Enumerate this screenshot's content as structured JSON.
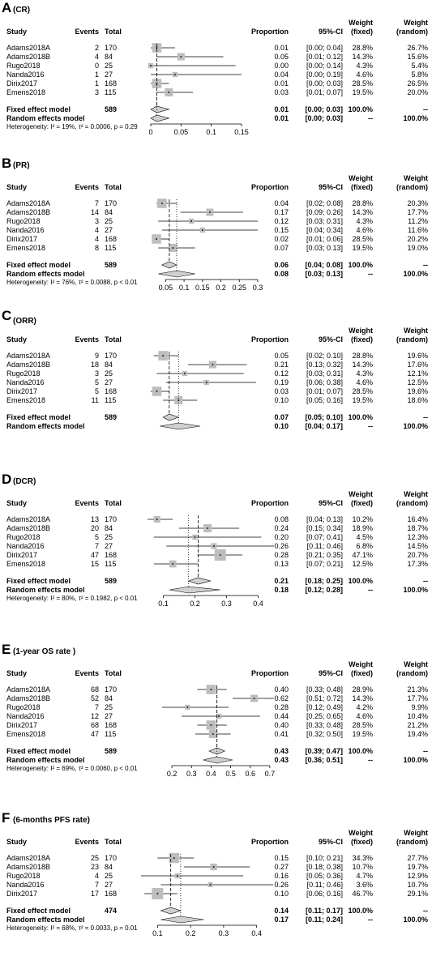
{
  "chart_data": [
    {
      "type": "forest",
      "panel_letter": "A",
      "panel_title": "(CR)",
      "headers": {
        "study": "Study",
        "events": "Events",
        "total": "Total",
        "proportion": "Proportion",
        "ci": "95%-CI",
        "wf": "Weight\n(fixed)",
        "wr": "Weight\n(random)"
      },
      "xaxis": {
        "min": 0,
        "max": 0.15,
        "ticks": [
          0,
          0.05,
          0.1,
          0.15
        ],
        "tick_labels": [
          "0",
          "0.05",
          "0.1",
          "0.15"
        ]
      },
      "studies": [
        {
          "name": "Adams2018A",
          "events": "2",
          "total": "170",
          "p": 0.01,
          "lo": 0.0,
          "hi": 0.04,
          "prop": "0.01",
          "ci": "[0.00; 0.04]",
          "wf": "28.8%",
          "wr": "26.7%",
          "w": 28.8
        },
        {
          "name": "Adams2018B",
          "events": "4",
          "total": "84",
          "p": 0.05,
          "lo": 0.01,
          "hi": 0.12,
          "prop": "0.05",
          "ci": "[0.01; 0.12]",
          "wf": "14.3%",
          "wr": "15.6%",
          "w": 14.3
        },
        {
          "name": "Rugo2018",
          "events": "0",
          "total": "25",
          "p": 0.0,
          "lo": 0.0,
          "hi": 0.14,
          "prop": "0.00",
          "ci": "[0.00; 0.14]",
          "wf": "4.3%",
          "wr": "5.4%",
          "w": 4.3
        },
        {
          "name": "Nanda2016",
          "events": "1",
          "total": "27",
          "p": 0.04,
          "lo": 0.0,
          "hi": 0.19,
          "prop": "0.04",
          "ci": "[0.00; 0.19]",
          "wf": "4.6%",
          "wr": "5.8%",
          "w": 4.6
        },
        {
          "name": "Dirix2017",
          "events": "1",
          "total": "168",
          "p": 0.01,
          "lo": 0.0,
          "hi": 0.03,
          "prop": "0.01",
          "ci": "[0.00; 0.03]",
          "wf": "28.5%",
          "wr": "26.5%",
          "w": 28.5
        },
        {
          "name": "Emens2018",
          "events": "3",
          "total": "115",
          "p": 0.03,
          "lo": 0.01,
          "hi": 0.07,
          "prop": "0.03",
          "ci": "[0.01; 0.07]",
          "wf": "19.5%",
          "wr": "20.0%",
          "w": 19.5
        }
      ],
      "fixed": {
        "label": "Fixed effect model",
        "total": "589",
        "p": 0.01,
        "lo": 0.0,
        "hi": 0.03,
        "prop": "0.01",
        "ci": "[0.00; 0.03]",
        "wf": "100.0%",
        "wr": "--"
      },
      "random": {
        "label": "Random effects model",
        "p": 0.01,
        "lo": 0.0,
        "hi": 0.03,
        "prop": "0.01",
        "ci": "[0.00; 0.03]",
        "wf": "--",
        "wr": "100.0%"
      },
      "heterogeneity": "Heterogeneity: I² = 19%, τ² = 0.0006, p = 0.29"
    },
    {
      "type": "forest",
      "panel_letter": "B",
      "panel_title": "(PR)",
      "headers": {
        "study": "Study",
        "events": "Events",
        "total": "Total",
        "proportion": "Proportion",
        "ci": "95%-CI",
        "wf": "Weight\n(fixed)",
        "wr": "Weight\n(random)"
      },
      "xaxis": {
        "min": 0.025,
        "max": 0.3,
        "ticks": [
          0.05,
          0.1,
          0.15,
          0.2,
          0.25,
          0.3
        ],
        "tick_labels": [
          "0.05",
          "0.1",
          "0.15",
          "0.2",
          "0.25",
          "0.3"
        ]
      },
      "studies": [
        {
          "name": "Adams2018A",
          "events": "7",
          "total": "170",
          "p": 0.04,
          "lo": 0.02,
          "hi": 0.08,
          "prop": "0.04",
          "ci": "[0.02; 0.08]",
          "wf": "28.8%",
          "wr": "20.3%",
          "w": 28.8
        },
        {
          "name": "Adams2018B",
          "events": "14",
          "total": "84",
          "p": 0.17,
          "lo": 0.09,
          "hi": 0.26,
          "prop": "0.17",
          "ci": "[0.09; 0.26]",
          "wf": "14.3%",
          "wr": "17.7%",
          "w": 14.3
        },
        {
          "name": "Rugo2018",
          "events": "3",
          "total": "25",
          "p": 0.12,
          "lo": 0.03,
          "hi": 0.31,
          "prop": "0.12",
          "ci": "[0.03; 0.31]",
          "wf": "4.3%",
          "wr": "11.2%",
          "w": 4.3
        },
        {
          "name": "Nanda2016",
          "events": "4",
          "total": "27",
          "p": 0.15,
          "lo": 0.04,
          "hi": 0.34,
          "prop": "0.15",
          "ci": "[0.04; 0.34]",
          "wf": "4.6%",
          "wr": "11.6%",
          "w": 4.6
        },
        {
          "name": "Dirix2017",
          "events": "4",
          "total": "168",
          "p": 0.02,
          "lo": 0.01,
          "hi": 0.06,
          "prop": "0.02",
          "ci": "[0.01; 0.06]",
          "wf": "28.5%",
          "wr": "20.2%",
          "w": 28.5
        },
        {
          "name": "Emens2018",
          "events": "8",
          "total": "115",
          "p": 0.07,
          "lo": 0.03,
          "hi": 0.13,
          "prop": "0.07",
          "ci": "[0.03; 0.13]",
          "wf": "19.5%",
          "wr": "19.0%",
          "w": 19.5
        }
      ],
      "fixed": {
        "label": "Fixed effect model",
        "total": "589",
        "p": 0.06,
        "lo": 0.04,
        "hi": 0.08,
        "prop": "0.06",
        "ci": "[0.04; 0.08]",
        "wf": "100.0%",
        "wr": "--"
      },
      "random": {
        "label": "Random effects model",
        "p": 0.08,
        "lo": 0.03,
        "hi": 0.13,
        "prop": "0.08",
        "ci": "[0.03; 0.13]",
        "wf": "--",
        "wr": "100.0%"
      },
      "heterogeneity": "Heterogeneity: I² = 76%, τ² = 0.0088, p < 0.01"
    },
    {
      "type": "forest",
      "panel_letter": "C",
      "panel_title": "(ORR)",
      "headers": {
        "study": "Study",
        "events": "Events",
        "total": "Total",
        "proportion": "Proportion",
        "ci": "95%-CI",
        "wf": "Weight\n(fixed)",
        "wr": "Weight\n(random)"
      },
      "xaxis": {
        "min": 0,
        "max": 0.35,
        "ticks": [],
        "tick_labels": []
      },
      "studies": [
        {
          "name": "Adams2018A",
          "events": "9",
          "total": "170",
          "p": 0.05,
          "lo": 0.02,
          "hi": 0.1,
          "prop": "0.05",
          "ci": "[0.02; 0.10]",
          "wf": "28.8%",
          "wr": "19.6%",
          "w": 28.8
        },
        {
          "name": "Adams2018B",
          "events": "18",
          "total": "84",
          "p": 0.21,
          "lo": 0.13,
          "hi": 0.32,
          "prop": "0.21",
          "ci": "[0.13; 0.32]",
          "wf": "14.3%",
          "wr": "17.6%",
          "w": 14.3
        },
        {
          "name": "Rugo2018",
          "events": "3",
          "total": "25",
          "p": 0.12,
          "lo": 0.03,
          "hi": 0.31,
          "prop": "0.12",
          "ci": "[0.03; 0.31]",
          "wf": "4.3%",
          "wr": "12.1%",
          "w": 4.3
        },
        {
          "name": "Nanda2016",
          "events": "5",
          "total": "27",
          "p": 0.19,
          "lo": 0.06,
          "hi": 0.38,
          "prop": "0.19",
          "ci": "[0.06; 0.38]",
          "wf": "4.6%",
          "wr": "12.5%",
          "w": 4.6
        },
        {
          "name": "Dirix2017",
          "events": "5",
          "total": "168",
          "p": 0.03,
          "lo": 0.01,
          "hi": 0.07,
          "prop": "0.03",
          "ci": "[0.01; 0.07]",
          "wf": "28.5%",
          "wr": "19.6%",
          "w": 28.5
        },
        {
          "name": "Emens2018",
          "events": "11",
          "total": "115",
          "p": 0.1,
          "lo": 0.05,
          "hi": 0.16,
          "prop": "0.10",
          "ci": "[0.05; 0.16]",
          "wf": "19.5%",
          "wr": "18.6%",
          "w": 19.5
        }
      ],
      "fixed": {
        "label": "Fixed effect model",
        "total": "589",
        "p": 0.07,
        "lo": 0.05,
        "hi": 0.1,
        "prop": "0.07",
        "ci": "[0.05; 0.10]",
        "wf": "100.0%",
        "wr": "--"
      },
      "random": {
        "label": "Random effects model",
        "p": 0.1,
        "lo": 0.04,
        "hi": 0.17,
        "prop": "0.10",
        "ci": "[0.04; 0.17]",
        "wf": "--",
        "wr": "100.0%"
      },
      "heterogeneity": ""
    },
    {
      "type": "forest",
      "panel_letter": "D",
      "panel_title": "(DCR)",
      "headers": {
        "study": "Study",
        "events": "Events",
        "total": "Total",
        "proportion": "Proportion",
        "ci": "95%-CI",
        "wf": "Weight\n(fixed)",
        "wr": "Weight\n(random)"
      },
      "xaxis": {
        "min": 0.05,
        "max": 0.45,
        "ticks": [
          0.1,
          0.2,
          0.3,
          0.4
        ],
        "tick_labels": [
          "0.1",
          "0.2",
          "0.3",
          "0.4"
        ]
      },
      "studies": [
        {
          "name": "Adams2018A",
          "events": "13",
          "total": "170",
          "p": 0.08,
          "lo": 0.04,
          "hi": 0.13,
          "prop": "0.08",
          "ci": "[0.04; 0.13]",
          "wf": "10.2%",
          "wr": "16.4%",
          "w": 10.2
        },
        {
          "name": "Adams2018B",
          "events": "20",
          "total": "84",
          "p": 0.24,
          "lo": 0.15,
          "hi": 0.34,
          "prop": "0.24",
          "ci": "[0.15; 0.34]",
          "wf": "18.9%",
          "wr": "18.7%",
          "w": 18.9
        },
        {
          "name": "Rugo2018",
          "events": "5",
          "total": "25",
          "p": 0.2,
          "lo": 0.07,
          "hi": 0.41,
          "prop": "0.20",
          "ci": "[0.07; 0.41]",
          "wf": "4.5%",
          "wr": "12.3%",
          "w": 4.5
        },
        {
          "name": "Nanda2016",
          "events": "7",
          "total": "27",
          "p": 0.26,
          "lo": 0.11,
          "hi": 0.46,
          "prop": "0.26",
          "ci": "[0.11; 0.46]",
          "wf": "6.8%",
          "wr": "14.5%",
          "w": 6.8
        },
        {
          "name": "Dirix2017",
          "events": "47",
          "total": "168",
          "p": 0.28,
          "lo": 0.21,
          "hi": 0.35,
          "prop": "0.28",
          "ci": "[0.21; 0.35]",
          "wf": "47.1%",
          "wr": "20.7%",
          "w": 47.1
        },
        {
          "name": "Emens2018",
          "events": "15",
          "total": "115",
          "p": 0.13,
          "lo": 0.07,
          "hi": 0.21,
          "prop": "0.13",
          "ci": "[0.07; 0.21]",
          "wf": "12.5%",
          "wr": "17.3%",
          "w": 12.5
        }
      ],
      "fixed": {
        "label": "Fixed effect model",
        "total": "589",
        "p": 0.21,
        "lo": 0.18,
        "hi": 0.25,
        "prop": "0.21",
        "ci": "[0.18; 0.25]",
        "wf": "100.0%",
        "wr": "--"
      },
      "random": {
        "label": "Random effects model",
        "p": 0.18,
        "lo": 0.12,
        "hi": 0.28,
        "prop": "0.18",
        "ci": "[0.12; 0.28]",
        "wf": "--",
        "wr": "100.0%"
      },
      "heterogeneity": "Heterogeneity: I² = 80%, τ² = 0.1982, p < 0.01"
    },
    {
      "type": "forest",
      "panel_letter": "E",
      "panel_title": "(1-year OS rate )",
      "headers": {
        "study": "Study",
        "events": "Events",
        "total": "Total",
        "proportion": "Proportion",
        "ci": "95%-CI",
        "wf": "Weight\n(fixed)",
        "wr": "Weight\n(random)"
      },
      "xaxis": {
        "min": 0.15,
        "max": 0.75,
        "ticks": [
          0.2,
          0.3,
          0.4,
          0.5,
          0.6,
          0.7
        ],
        "tick_labels": [
          "0.2",
          "0.3",
          "0.4",
          "0.5",
          "0.6",
          "0.7"
        ]
      },
      "studies": [
        {
          "name": "Adams2018A",
          "events": "68",
          "total": "170",
          "p": 0.4,
          "lo": 0.33,
          "hi": 0.48,
          "prop": "0.40",
          "ci": "[0.33; 0.48]",
          "wf": "28.9%",
          "wr": "21.3%",
          "w": 28.9
        },
        {
          "name": "Adams2018B",
          "events": "52",
          "total": "84",
          "p": 0.62,
          "lo": 0.51,
          "hi": 0.72,
          "prop": "0.62",
          "ci": "[0.51; 0.72]",
          "wf": "14.3%",
          "wr": "17.7%",
          "w": 14.3
        },
        {
          "name": "Rugo2018",
          "events": "7",
          "total": "25",
          "p": 0.28,
          "lo": 0.12,
          "hi": 0.49,
          "prop": "0.28",
          "ci": "[0.12; 0.49]",
          "wf": "4.2%",
          "wr": "9.9%",
          "w": 4.2
        },
        {
          "name": "Nanda2016",
          "events": "12",
          "total": "27",
          "p": 0.44,
          "lo": 0.25,
          "hi": 0.65,
          "prop": "0.44",
          "ci": "[0.25; 0.65]",
          "wf": "4.6%",
          "wr": "10.4%",
          "w": 4.6
        },
        {
          "name": "Dirix2017",
          "events": "68",
          "total": "168",
          "p": 0.4,
          "lo": 0.33,
          "hi": 0.48,
          "prop": "0.40",
          "ci": "[0.33; 0.48]",
          "wf": "28.5%",
          "wr": "21.2%",
          "w": 28.5
        },
        {
          "name": "Emens2018",
          "events": "47",
          "total": "115",
          "p": 0.41,
          "lo": 0.32,
          "hi": 0.5,
          "prop": "0.41",
          "ci": "[0.32; 0.50]",
          "wf": "19.5%",
          "wr": "19.4%",
          "w": 19.5
        }
      ],
      "fixed": {
        "label": "Fixed effect model",
        "total": "589",
        "p": 0.43,
        "lo": 0.39,
        "hi": 0.47,
        "prop": "0.43",
        "ci": "[0.39; 0.47]",
        "wf": "100.0%",
        "wr": "--"
      },
      "random": {
        "label": "Random effects model",
        "p": 0.43,
        "lo": 0.36,
        "hi": 0.51,
        "prop": "0.43",
        "ci": "[0.36; 0.51]",
        "wf": "--",
        "wr": "100.0%"
      },
      "heterogeneity": "Heterogeneity: I² = 69%, τ² = 0.0060, p < 0.01"
    },
    {
      "type": "forest",
      "panel_letter": "F",
      "panel_title": "(6-months PFS rate)",
      "headers": {
        "study": "Study",
        "events": "Events",
        "total": "Total",
        "proportion": "Proportion",
        "ci": "95%-CI",
        "wf": "Weight\n(fixed)",
        "wr": "Weight\n(random)"
      },
      "xaxis": {
        "min": 0.05,
        "max": 0.45,
        "ticks": [
          0.1,
          0.2,
          0.3,
          0.4
        ],
        "tick_labels": [
          "0.1",
          "0.2",
          "0.3",
          "0.4"
        ]
      },
      "studies": [
        {
          "name": "Adams2018A",
          "events": "25",
          "total": "170",
          "p": 0.15,
          "lo": 0.1,
          "hi": 0.21,
          "prop": "0.15",
          "ci": "[0.10; 0.21]",
          "wf": "34.3%",
          "wr": "27.7%",
          "w": 34.3
        },
        {
          "name": "Adams2018B",
          "events": "23",
          "total": "84",
          "p": 0.27,
          "lo": 0.18,
          "hi": 0.38,
          "prop": "0.27",
          "ci": "[0.18; 0.38]",
          "wf": "10.7%",
          "wr": "19.7%",
          "w": 10.7
        },
        {
          "name": "Rugo2018",
          "events": "4",
          "total": "25",
          "p": 0.16,
          "lo": 0.05,
          "hi": 0.36,
          "prop": "0.16",
          "ci": "[0.05; 0.36]",
          "wf": "4.7%",
          "wr": "12.9%",
          "w": 4.7
        },
        {
          "name": "Nanda2016",
          "events": "7",
          "total": "27",
          "p": 0.26,
          "lo": 0.11,
          "hi": 0.46,
          "prop": "0.26",
          "ci": "[0.11; 0.46]",
          "wf": "3.6%",
          "wr": "10.7%",
          "w": 3.6
        },
        {
          "name": "Dirix2017",
          "events": "17",
          "total": "168",
          "p": 0.1,
          "lo": 0.06,
          "hi": 0.16,
          "prop": "0.10",
          "ci": "[0.06; 0.16]",
          "wf": "46.7%",
          "wr": "29.1%",
          "w": 46.7
        }
      ],
      "fixed": {
        "label": "Fixed effect model",
        "total": "474",
        "p": 0.14,
        "lo": 0.11,
        "hi": 0.17,
        "prop": "0.14",
        "ci": "[0.11; 0.17]",
        "wf": "100.0%",
        "wr": "--"
      },
      "random": {
        "label": "Random effects model",
        "p": 0.17,
        "lo": 0.11,
        "hi": 0.24,
        "prop": "0.17",
        "ci": "[0.11; 0.24]",
        "wf": "--",
        "wr": "100.0%"
      },
      "heterogeneity": "Heterogeneity: I² = 68%, τ² = 0.0033, p = 0.01"
    }
  ]
}
